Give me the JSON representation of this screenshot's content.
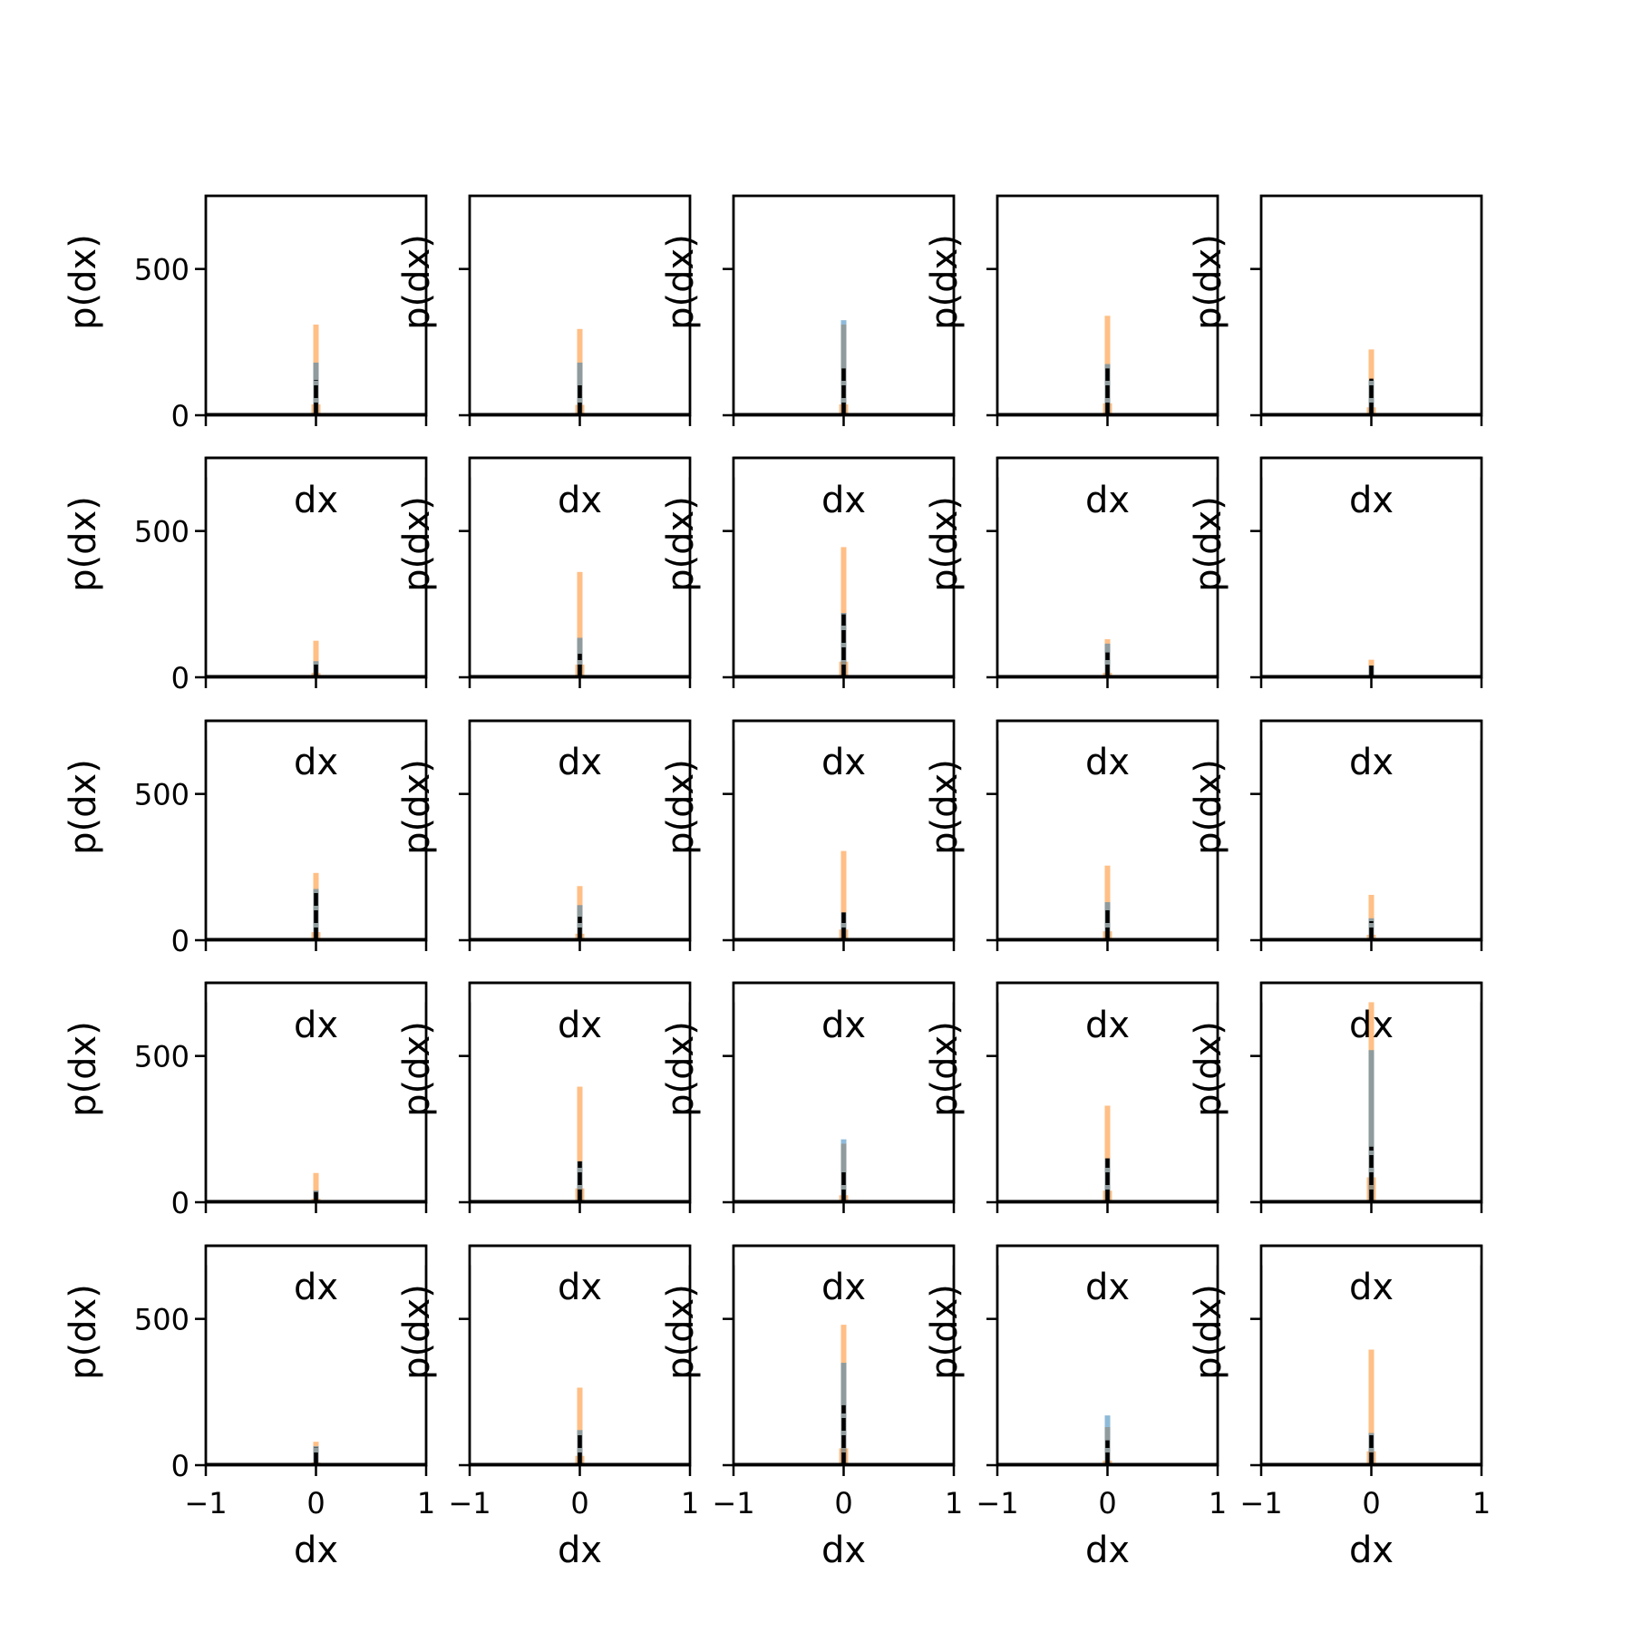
{
  "chart_data": {
    "type": "bar",
    "layout": "5x5 grid of small histograms",
    "xlabel": "dx",
    "ylabel": "p(dx)",
    "xlim": [
      -1,
      1
    ],
    "ylim": [
      0,
      750
    ],
    "x_ticks": [
      -1,
      0,
      1
    ],
    "x_tick_labels": [
      "−1",
      "0",
      "1"
    ],
    "y_ticks": [
      0,
      500
    ],
    "y_tick_labels": [
      "0",
      "500"
    ],
    "grid": false,
    "legend": "none",
    "colors": {
      "orange": "#ff7f0e",
      "blue": "#1f77b4",
      "black": "#000000"
    },
    "note": "each panel: orange histogram, blue histogram, black dashed curve, all peaked at dx = 0",
    "panels": [
      {
        "row": 0,
        "col": 0,
        "orange_peak": 310,
        "blue_peak": 180,
        "black_peak": 120
      },
      {
        "row": 0,
        "col": 1,
        "orange_peak": 295,
        "blue_peak": 180,
        "black_peak": 110
      },
      {
        "row": 0,
        "col": 2,
        "orange_peak": 310,
        "blue_peak": 325,
        "black_peak": 160
      },
      {
        "row": 0,
        "col": 3,
        "orange_peak": 340,
        "blue_peak": 175,
        "black_peak": 160
      },
      {
        "row": 0,
        "col": 4,
        "orange_peak": 225,
        "blue_peak": 120,
        "black_peak": 125
      },
      {
        "row": 1,
        "col": 0,
        "orange_peak": 125,
        "blue_peak": 55,
        "black_peak": 50
      },
      {
        "row": 1,
        "col": 1,
        "orange_peak": 360,
        "blue_peak": 135,
        "black_peak": 80
      },
      {
        "row": 1,
        "col": 2,
        "orange_peak": 445,
        "blue_peak": 220,
        "black_peak": 215
      },
      {
        "row": 1,
        "col": 3,
        "orange_peak": 130,
        "blue_peak": 115,
        "black_peak": 85
      },
      {
        "row": 1,
        "col": 4,
        "orange_peak": 60,
        "blue_peak": 40,
        "black_peak": 40
      },
      {
        "row": 2,
        "col": 0,
        "orange_peak": 230,
        "blue_peak": 175,
        "black_peak": 170
      },
      {
        "row": 2,
        "col": 1,
        "orange_peak": 185,
        "blue_peak": 120,
        "black_peak": 80
      },
      {
        "row": 2,
        "col": 2,
        "orange_peak": 305,
        "blue_peak": 95,
        "black_peak": 95
      },
      {
        "row": 2,
        "col": 3,
        "orange_peak": 255,
        "blue_peak": 130,
        "black_peak": 115
      },
      {
        "row": 2,
        "col": 4,
        "orange_peak": 155,
        "blue_peak": 75,
        "black_peak": 65
      },
      {
        "row": 3,
        "col": 0,
        "orange_peak": 100,
        "blue_peak": 40,
        "black_peak": 35
      },
      {
        "row": 3,
        "col": 1,
        "orange_peak": 395,
        "blue_peak": 140,
        "black_peak": 140
      },
      {
        "row": 3,
        "col": 2,
        "orange_peak": 200,
        "blue_peak": 215,
        "black_peak": 110
      },
      {
        "row": 3,
        "col": 3,
        "orange_peak": 330,
        "blue_peak": 150,
        "black_peak": 150
      },
      {
        "row": 3,
        "col": 4,
        "orange_peak": 710,
        "blue_peak": 520,
        "black_peak": 190
      },
      {
        "row": 4,
        "col": 0,
        "orange_peak": 80,
        "blue_peak": 65,
        "black_peak": 60
      },
      {
        "row": 4,
        "col": 1,
        "orange_peak": 265,
        "blue_peak": 120,
        "black_peak": 115
      },
      {
        "row": 4,
        "col": 2,
        "orange_peak": 480,
        "blue_peak": 350,
        "black_peak": 205
      },
      {
        "row": 4,
        "col": 3,
        "orange_peak": 130,
        "blue_peak": 170,
        "black_peak": 85
      },
      {
        "row": 4,
        "col": 4,
        "orange_peak": 395,
        "blue_peak": 110,
        "black_peak": 105
      }
    ]
  }
}
